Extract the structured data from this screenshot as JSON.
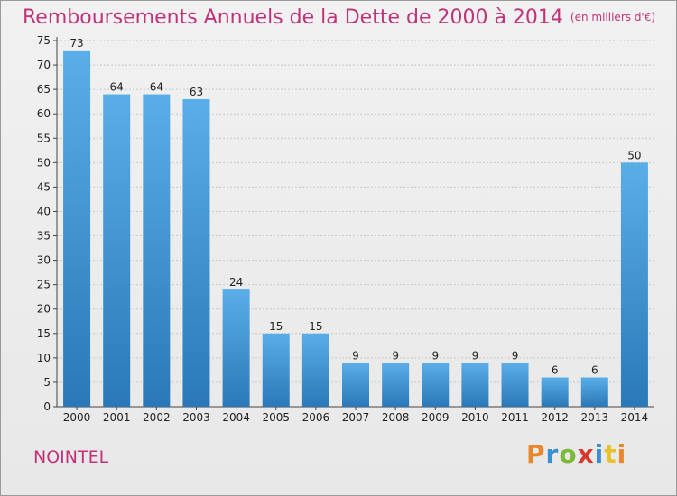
{
  "header": {
    "title": "Remboursements Annuels de la Dette de 2000 à 2014",
    "subtitle": "(en milliers d'€)"
  },
  "footer": {
    "commune": "NOINTEL",
    "logo_letters": [
      "P",
      "r",
      "o",
      "x",
      "i",
      "t",
      "i"
    ]
  },
  "colors": {
    "title": "#c0337a",
    "bar_top": "#5aaee8",
    "bar_bottom": "#2a78b8",
    "grid": "#c8c8c8"
  },
  "chart_data": {
    "type": "bar",
    "title": "Remboursements Annuels de la Dette de 2000 à 2014",
    "subtitle": "(en milliers d'€)",
    "categories": [
      "2000",
      "2001",
      "2002",
      "2003",
      "2004",
      "2005",
      "2006",
      "2007",
      "2008",
      "2009",
      "2010",
      "2011",
      "2012",
      "2013",
      "2014"
    ],
    "values": [
      73,
      64,
      64,
      63,
      24,
      15,
      15,
      9,
      9,
      9,
      9,
      9,
      6,
      6,
      50
    ],
    "ylim": [
      0,
      75
    ],
    "yticks": [
      0,
      5,
      10,
      15,
      20,
      25,
      30,
      35,
      40,
      45,
      50,
      55,
      60,
      65,
      70,
      75
    ],
    "grid": true
  }
}
